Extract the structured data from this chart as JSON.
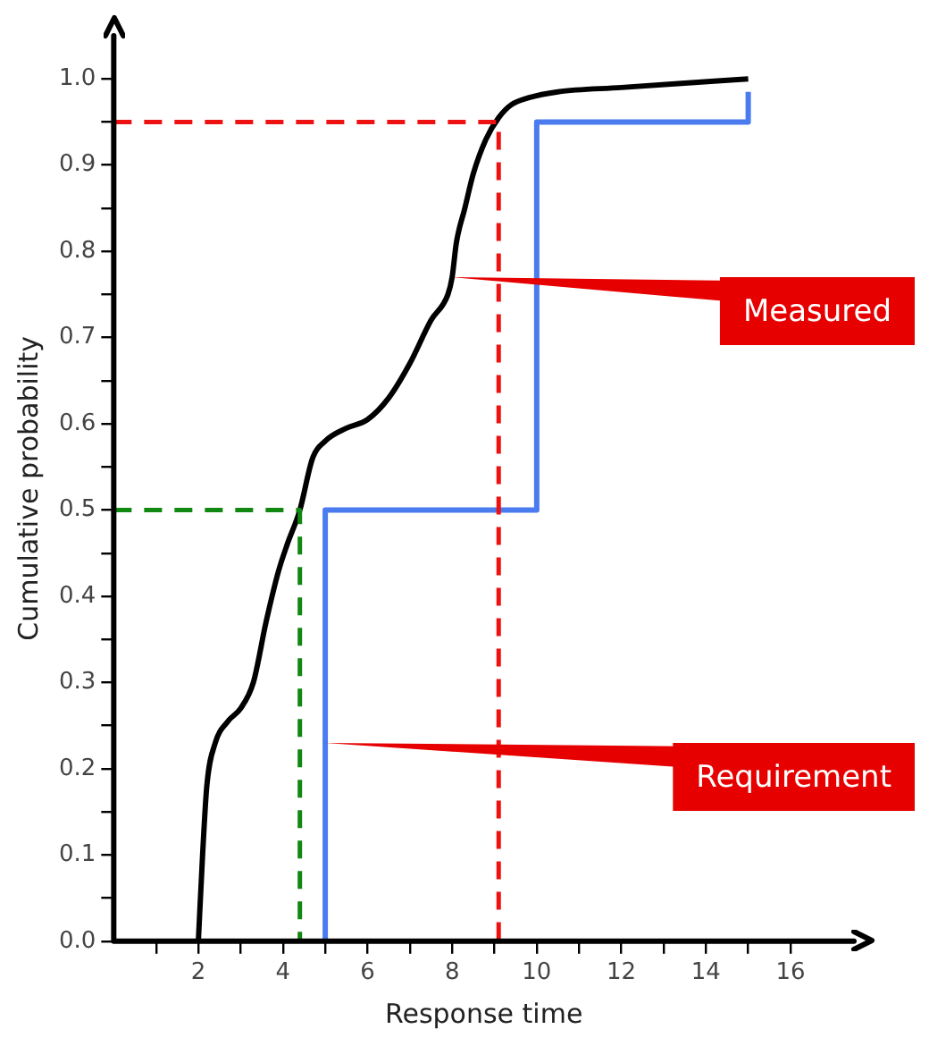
{
  "chart_data": {
    "type": "line",
    "xlabel": "Response time",
    "ylabel": "Cumulative probability",
    "xlim": [
      0,
      17.5
    ],
    "ylim": [
      0,
      1.05
    ],
    "xticks": [
      {
        "value": 1,
        "label": null
      },
      2,
      {
        "value": 3,
        "label": null
      },
      4,
      {
        "value": 5,
        "label": null
      },
      6,
      {
        "value": 7,
        "label": null
      },
      8,
      {
        "value": 9,
        "label": null
      },
      10,
      {
        "value": 11,
        "label": null
      },
      12,
      {
        "value": 13,
        "label": null
      },
      14,
      {
        "value": 15,
        "label": null
      },
      16
    ],
    "yticks": [
      {
        "value": 0,
        "label": "0.0"
      },
      {
        "value": 0.05,
        "label": null
      },
      0.1,
      {
        "value": 0.15,
        "label": null
      },
      0.2,
      {
        "value": 0.25,
        "label": null
      },
      0.3,
      {
        "value": 0.35,
        "label": null
      },
      0.4,
      {
        "value": 0.45,
        "label": null
      },
      0.5,
      {
        "value": 0.55,
        "label": null
      },
      0.6,
      {
        "value": 0.65,
        "label": null
      },
      0.7,
      {
        "value": 0.75,
        "label": null
      },
      0.8,
      {
        "value": 0.85,
        "label": null
      },
      0.9,
      {
        "value": 0.95,
        "label": null
      },
      {
        "value": 1,
        "label": "1.0"
      }
    ],
    "grid": false,
    "legend": false,
    "marker": "none",
    "series": [
      {
        "color": "#000000",
        "line_style": "solid",
        "x": [
          2.0,
          2.1,
          2.2,
          2.4,
          2.7,
          3.0,
          3.3,
          3.6,
          3.9,
          4.1,
          4.4,
          4.7,
          5.0,
          5.5,
          6.0,
          6.5,
          7.0,
          7.5,
          7.9,
          8.0,
          8.1,
          8.3,
          8.5,
          8.8,
          9.1,
          9.4,
          9.8,
          10.5,
          12.0,
          13.5,
          15.0
        ],
        "values": [
          0,
          0.1,
          0.18,
          0.23,
          0.255,
          0.27,
          0.3,
          0.37,
          0.43,
          0.46,
          0.5,
          0.56,
          0.58,
          0.595,
          0.605,
          0.63,
          0.67,
          0.72,
          0.75,
          0.77,
          0.81,
          0.85,
          0.89,
          0.93,
          0.955,
          0.97,
          0.978,
          0.985,
          0.99,
          0.995,
          1.0
        ]
      },
      {
        "color": "#4a7bef",
        "line_style": "solid",
        "x": [
          5,
          5,
          10,
          10,
          15,
          15
        ],
        "values": [
          0,
          0.5,
          0.5,
          0.95,
          0.95,
          0.985
        ]
      },
      {
        "color": "#ee1111",
        "line_style": "dashed",
        "x": [
          0,
          9.1,
          9.1
        ],
        "values": [
          0.95,
          0.95,
          0
        ]
      },
      {
        "color": "#118811",
        "line_style": "dashed",
        "x": [
          0,
          4.4,
          4.4
        ],
        "values": [
          0.5,
          0.5,
          0
        ]
      }
    ],
    "annotations": [
      {
        "text": "Measured",
        "x": 8.0,
        "y": 0.77
      },
      {
        "text": "Requirement",
        "x": 5,
        "y": 0.23
      }
    ]
  }
}
